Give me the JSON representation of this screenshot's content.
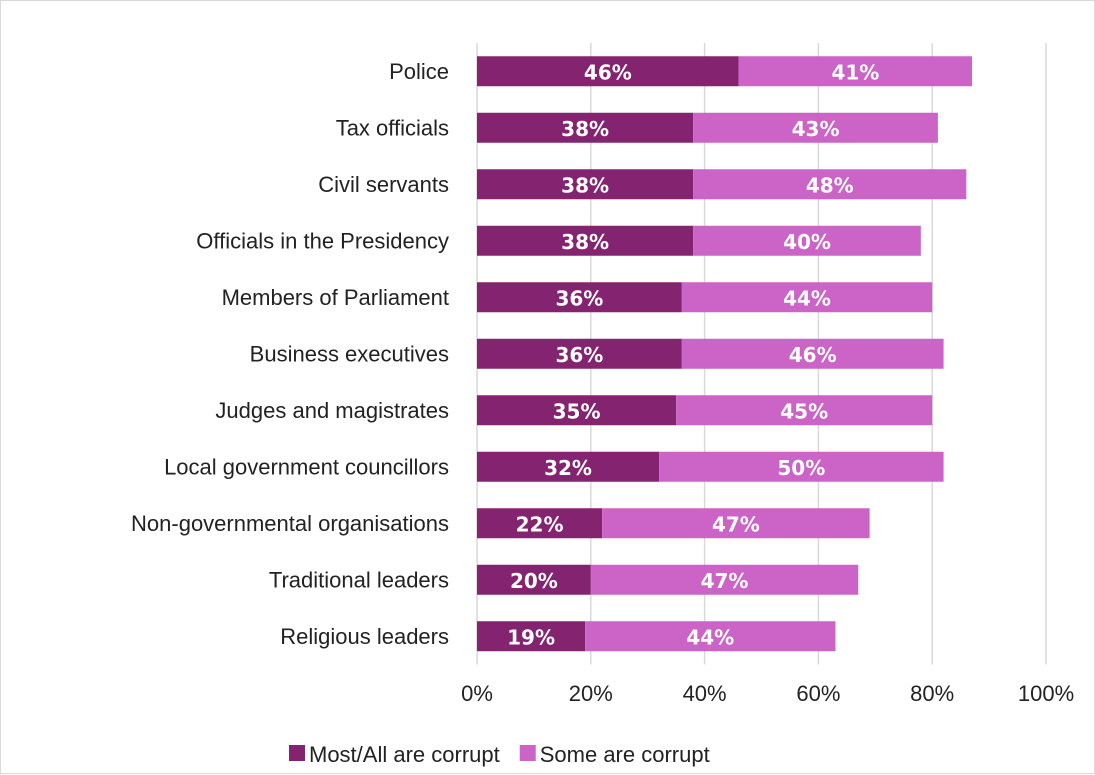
{
  "chart_data": {
    "type": "bar",
    "orientation": "horizontal",
    "stacked": true,
    "title": "",
    "xlabel": "",
    "ylabel": "",
    "categories": [
      "Police",
      "Tax officials",
      "Civil servants",
      "Officials in the Presidency",
      "Members of Parliament",
      "Business executives",
      "Judges and magistrates",
      "Local government councillors",
      "Non-governmental organisations",
      "Traditional leaders",
      "Religious leaders"
    ],
    "series": [
      {
        "name": "Most/All are corrupt",
        "color": "#84236f",
        "values": [
          46,
          38,
          38,
          38,
          36,
          36,
          35,
          32,
          22,
          20,
          19
        ]
      },
      {
        "name": "Some are corrupt",
        "color": "#cc63c6",
        "values": [
          41,
          43,
          48,
          40,
          44,
          46,
          45,
          50,
          47,
          47,
          44
        ]
      }
    ],
    "xlim": [
      0,
      100
    ],
    "xticks": [
      "0%",
      "20%",
      "40%",
      "60%",
      "80%",
      "100%"
    ],
    "value_suffix": "%",
    "grid": true,
    "legend_position": "bottom"
  }
}
